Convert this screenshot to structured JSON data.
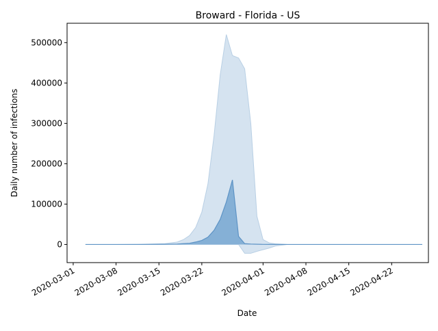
{
  "chart_data": {
    "type": "area",
    "title": "Broward - Florida - US",
    "xlabel": "Date",
    "ylabel": "Daily number of infections",
    "x_type": "date",
    "xlim": [
      "2020-02-29",
      "2020-04-28"
    ],
    "ylim": [
      -45000,
      548000
    ],
    "x_ticks": [
      "2020-03-01",
      "2020-03-08",
      "2020-03-15",
      "2020-03-22",
      "2020-04-01",
      "2020-04-08",
      "2020-04-15",
      "2020-04-22"
    ],
    "y_ticks": [
      0,
      100000,
      200000,
      300000,
      400000,
      500000
    ],
    "y_tick_labels": [
      "0",
      "100000",
      "200000",
      "300000",
      "400000",
      "500000"
    ],
    "grid": false,
    "legend": false,
    "colors": {
      "band": "#d5e3f0",
      "band_edge": "#b8cfe4",
      "fill": "#85b0d6",
      "line": "#5d93c5"
    },
    "dates": [
      "2020-03-03",
      "2020-03-08",
      "2020-03-12",
      "2020-03-16",
      "2020-03-18",
      "2020-03-19",
      "2020-03-20",
      "2020-03-21",
      "2020-03-22",
      "2020-03-23",
      "2020-03-24",
      "2020-03-25",
      "2020-03-26",
      "2020-03-27",
      "2020-03-28",
      "2020-03-29",
      "2020-03-30",
      "2020-03-31",
      "2020-04-01",
      "2020-04-02",
      "2020-04-03",
      "2020-04-05",
      "2020-04-10",
      "2020-04-20",
      "2020-04-27"
    ],
    "series": [
      {
        "values": [
          0,
          0,
          0,
          500,
          1000,
          2000,
          3000,
          6000,
          10000,
          18000,
          35000,
          62000,
          105000,
          160000,
          20000,
          2000,
          1000,
          500,
          200,
          100,
          50,
          0,
          0,
          0,
          0
        ]
      },
      {
        "values": [
          0,
          0,
          500,
          2000,
          6000,
          12000,
          22000,
          42000,
          80000,
          150000,
          270000,
          420000,
          520000,
          468000,
          462000,
          435000,
          300000,
          70000,
          12000,
          4000,
          1500,
          0,
          0,
          0,
          0
        ]
      },
      {
        "values": [
          0,
          0,
          0,
          0,
          0,
          0,
          0,
          0,
          0,
          0,
          0,
          0,
          0,
          0,
          0,
          -22000,
          -22000,
          -17000,
          -13000,
          -9000,
          -4000,
          0,
          0,
          0,
          0
        ]
      }
    ]
  }
}
